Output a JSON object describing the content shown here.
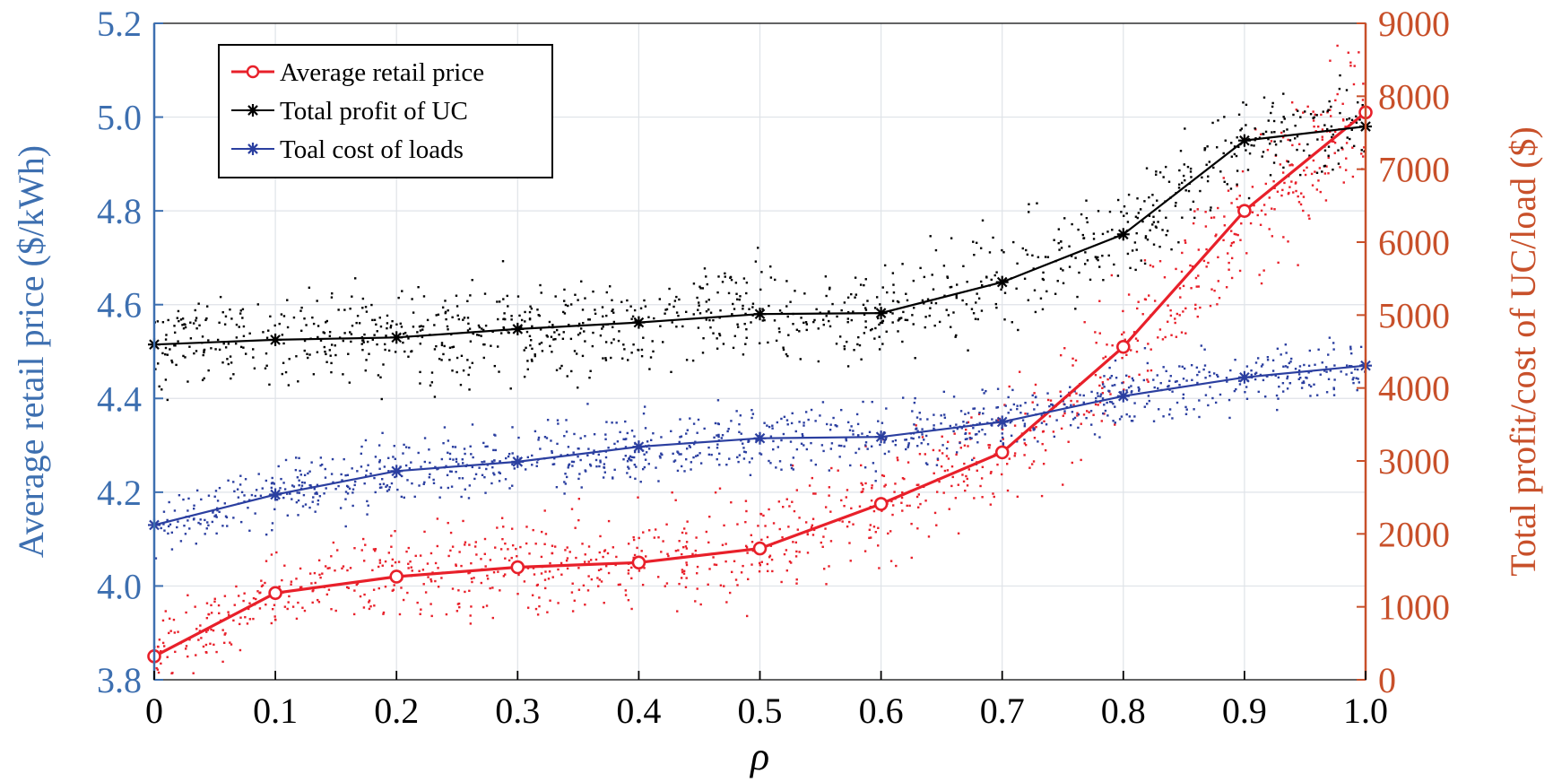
{
  "chart_data": {
    "type": "line",
    "x": [
      0,
      0.1,
      0.2,
      0.3,
      0.4,
      0.5,
      0.6,
      0.7,
      0.8,
      0.9,
      1.0
    ],
    "x_tick_labels": [
      "0",
      "0.1",
      "0.2",
      "0.3",
      "0.4",
      "0.5",
      "0.6",
      "0.7",
      "0.8",
      "0.9",
      "1.0"
    ],
    "xlabel": "ρ",
    "xlim": [
      0,
      1
    ],
    "left_axis": {
      "label": "Average retail price ($/kWh)",
      "ylim": [
        3.8,
        5.2
      ],
      "tick_labels": [
        "3.8",
        "4.0",
        "4.2",
        "4.4",
        "4.6",
        "4.8",
        "5.0",
        "5.2"
      ],
      "color": "#3d6fb0"
    },
    "right_axis": {
      "label": "Total profit/cost of UC/load ($)",
      "ylim": [
        0,
        9000
      ],
      "tick_labels": [
        "0",
        "1000",
        "2000",
        "3000",
        "4000",
        "5000",
        "6000",
        "7000",
        "8000",
        "9000"
      ],
      "color": "#c8502a"
    },
    "grid": true,
    "legend_position": "top-left",
    "series": [
      {
        "name": "Average retail price",
        "axis": "left",
        "marker": "circle",
        "color": "#e8202a",
        "values": [
          3.85,
          3.985,
          4.02,
          4.04,
          4.05,
          4.08,
          4.175,
          4.285,
          4.51,
          4.8,
          5.01
        ],
        "scatter_noise": 0.06
      },
      {
        "name": "Total profit of UC",
        "axis": "left",
        "marker": "star",
        "color": "#000000",
        "values": [
          4.515,
          4.525,
          4.53,
          4.548,
          4.562,
          4.58,
          4.582,
          4.648,
          4.75,
          4.95,
          4.98
        ],
        "scatter_noise": 0.05
      },
      {
        "name": "Toal cost of loads",
        "axis": "left",
        "marker": "star",
        "color": "#2b3fa0",
        "values": [
          4.13,
          4.195,
          4.245,
          4.265,
          4.297,
          4.315,
          4.318,
          4.35,
          4.405,
          4.445,
          4.47
        ],
        "scatter_noise": 0.035
      }
    ]
  }
}
